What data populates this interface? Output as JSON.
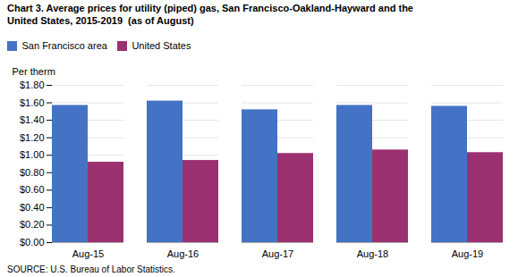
{
  "chart_data": {
    "type": "bar",
    "title": "Chart 3. Average prices for utility (piped) gas, San Francisco-Oakland-Hayward and the\nUnited States, 2015-2019  (as of August)",
    "ylabel": "Per therm",
    "source": "SOURCE: U.S. Bureau of Labor Statistics.",
    "categories": [
      "Aug-15",
      "Aug-16",
      "Aug-17",
      "Aug-18",
      "Aug-19"
    ],
    "series": [
      {
        "name": "San Francisco area",
        "color": "#4472C4",
        "values": [
          1.57,
          1.62,
          1.52,
          1.57,
          1.56
        ]
      },
      {
        "name": "United States",
        "color": "#9B3070",
        "values": [
          0.92,
          0.94,
          1.02,
          1.06,
          1.03
        ]
      }
    ],
    "ylim": [
      0,
      1.8
    ],
    "yticks": [
      {
        "value": 0.0,
        "label": "$0.00"
      },
      {
        "value": 0.2,
        "label": "$0.20"
      },
      {
        "value": 0.4,
        "label": "$0.40"
      },
      {
        "value": 0.6,
        "label": "$0.60"
      },
      {
        "value": 0.8,
        "label": "$0.80"
      },
      {
        "value": 1.0,
        "label": "$1.00"
      },
      {
        "value": 1.2,
        "label": "$1.20"
      },
      {
        "value": 1.4,
        "label": "$1.40"
      },
      {
        "value": 1.6,
        "label": "$1.60"
      },
      {
        "value": 1.8,
        "label": "$1.80"
      }
    ],
    "grid": true,
    "legend": "upper left"
  }
}
